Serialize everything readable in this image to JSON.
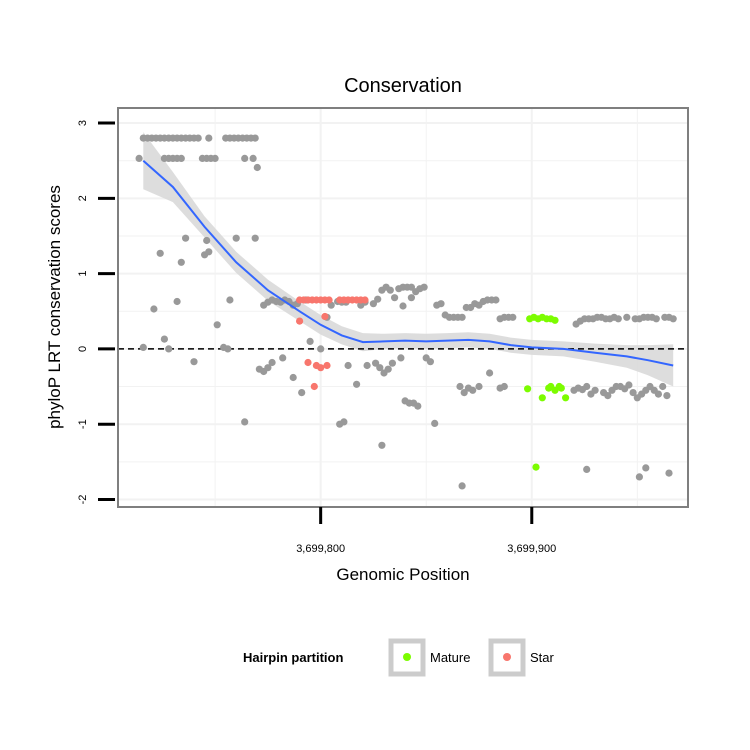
{
  "chart_data": {
    "type": "scatter",
    "title": "Conservation",
    "xlabel": "Genomic Position",
    "ylabel": "phyloP LRT conservation scores",
    "xlim": [
      3699704,
      3699974
    ],
    "ylim": [
      -2.1,
      3.2
    ],
    "x_ticks": [
      3699800,
      3699900
    ],
    "x_tick_labels": [
      "3,699,800",
      "3,699,900"
    ],
    "y_ticks": [
      -2,
      -1,
      0,
      1,
      2,
      3
    ],
    "y_tick_labels": [
      "-2",
      "-1",
      "0",
      "1",
      "2",
      "3"
    ],
    "reference_line_y": 0,
    "grid": true,
    "legend": {
      "title": "Hairpin partition",
      "position": "bottom",
      "entries": [
        {
          "label": "Mature",
          "color": "#7CFC00"
        },
        {
          "label": "Star",
          "color": "#F8766D"
        }
      ]
    },
    "colors": {
      "other": "#999999",
      "Mature": "#7CFC00",
      "Star": "#F8766D",
      "smooth": "#3366FF",
      "ribbon": "#D9D9D9"
    },
    "series": [
      {
        "name": "Other",
        "points": [
          [
            3699716,
            2.8
          ],
          [
            3699718,
            2.8
          ],
          [
            3699720,
            2.8
          ],
          [
            3699722,
            2.8
          ],
          [
            3699724,
            2.8
          ],
          [
            3699726,
            2.8
          ],
          [
            3699728,
            2.8
          ],
          [
            3699730,
            2.8
          ],
          [
            3699732,
            2.8
          ],
          [
            3699734,
            2.8
          ],
          [
            3699736,
            2.8
          ],
          [
            3699738,
            2.8
          ],
          [
            3699740,
            2.8
          ],
          [
            3699742,
            2.8
          ],
          [
            3699747,
            2.8
          ],
          [
            3699755,
            2.8
          ],
          [
            3699757,
            2.8
          ],
          [
            3699759,
            2.8
          ],
          [
            3699761,
            2.8
          ],
          [
            3699763,
            2.8
          ],
          [
            3699765,
            2.8
          ],
          [
            3699767,
            2.8
          ],
          [
            3699769,
            2.8
          ],
          [
            3699714,
            2.53
          ],
          [
            3699726,
            2.53
          ],
          [
            3699728,
            2.53
          ],
          [
            3699730,
            2.53
          ],
          [
            3699732,
            2.53
          ],
          [
            3699734,
            2.53
          ],
          [
            3699744,
            2.53
          ],
          [
            3699746,
            2.53
          ],
          [
            3699748,
            2.53
          ],
          [
            3699750,
            2.53
          ],
          [
            3699764,
            2.53
          ],
          [
            3699768,
            2.53
          ],
          [
            3699770,
            2.41
          ],
          [
            3699736,
            1.47
          ],
          [
            3699746,
            1.44
          ],
          [
            3699745,
            1.25
          ],
          [
            3699747,
            1.29
          ],
          [
            3699724,
            1.27
          ],
          [
            3699734,
            1.15
          ],
          [
            3699760,
            1.47
          ],
          [
            3699769,
            1.47
          ],
          [
            3699732,
            0.63
          ],
          [
            3699757,
            0.65
          ],
          [
            3699721,
            0.53
          ],
          [
            3699751,
            0.32
          ],
          [
            3699726,
            0.13
          ],
          [
            3699716,
            0.02
          ],
          [
            3699728,
            0.0
          ],
          [
            3699754,
            0.02
          ],
          [
            3699756,
            0.0
          ],
          [
            3699740,
            -0.17
          ],
          [
            3699764,
            -0.97
          ],
          [
            3699771,
            -0.27
          ],
          [
            3699773,
            -0.3
          ],
          [
            3699775,
            -0.25
          ],
          [
            3699777,
            -0.18
          ],
          [
            3699782,
            -0.12
          ],
          [
            3699787,
            -0.38
          ],
          [
            3699791,
            -0.58
          ],
          [
            3699773,
            0.58
          ],
          [
            3699775,
            0.62
          ],
          [
            3699777,
            0.65
          ],
          [
            3699779,
            0.63
          ],
          [
            3699781,
            0.62
          ],
          [
            3699783,
            0.65
          ],
          [
            3699785,
            0.63
          ],
          [
            3699787,
            0.58
          ],
          [
            3699789,
            0.6
          ],
          [
            3699793,
            0.65
          ],
          [
            3699805,
            0.58
          ],
          [
            3699808,
            0.63
          ],
          [
            3699810,
            0.62
          ],
          [
            3699812,
            0.62
          ],
          [
            3699795,
            0.1
          ],
          [
            3699800,
            0.0
          ],
          [
            3699803,
            0.42
          ],
          [
            3699809,
            -1.0
          ],
          [
            3699811,
            -0.97
          ],
          [
            3699813,
            -0.22
          ],
          [
            3699817,
            -0.47
          ],
          [
            3699819,
            0.58
          ],
          [
            3699821,
            0.62
          ],
          [
            3699825,
            0.6
          ],
          [
            3699827,
            0.66
          ],
          [
            3699829,
            0.78
          ],
          [
            3699831,
            0.82
          ],
          [
            3699833,
            0.78
          ],
          [
            3699835,
            0.68
          ],
          [
            3699837,
            0.8
          ],
          [
            3699839,
            0.82
          ],
          [
            3699841,
            0.82
          ],
          [
            3699843,
            0.82
          ],
          [
            3699845,
            0.76
          ],
          [
            3699847,
            0.8
          ],
          [
            3699849,
            0.82
          ],
          [
            3699843,
            0.68
          ],
          [
            3699839,
            0.57
          ],
          [
            3699822,
            -0.22
          ],
          [
            3699826,
            -0.19
          ],
          [
            3699828,
            -0.25
          ],
          [
            3699830,
            -0.32
          ],
          [
            3699832,
            -0.27
          ],
          [
            3699834,
            -0.19
          ],
          [
            3699838,
            -0.12
          ],
          [
            3699840,
            -0.69
          ],
          [
            3699842,
            -0.72
          ],
          [
            3699844,
            -0.72
          ],
          [
            3699846,
            -0.76
          ],
          [
            3699850,
            -0.12
          ],
          [
            3699852,
            -0.17
          ],
          [
            3699854,
            -0.99
          ],
          [
            3699855,
            0.58
          ],
          [
            3699857,
            0.6
          ],
          [
            3699859,
            0.45
          ],
          [
            3699861,
            0.42
          ],
          [
            3699863,
            0.42
          ],
          [
            3699865,
            0.42
          ],
          [
            3699867,
            0.42
          ],
          [
            3699869,
            0.55
          ],
          [
            3699871,
            0.55
          ],
          [
            3699873,
            0.6
          ],
          [
            3699875,
            0.58
          ],
          [
            3699877,
            0.63
          ],
          [
            3699879,
            0.65
          ],
          [
            3699881,
            0.65
          ],
          [
            3699883,
            0.65
          ],
          [
            3699885,
            0.4
          ],
          [
            3699887,
            0.42
          ],
          [
            3699889,
            0.42
          ],
          [
            3699891,
            0.42
          ],
          [
            3699866,
            -0.5
          ],
          [
            3699868,
            -0.58
          ],
          [
            3699870,
            -0.52
          ],
          [
            3699872,
            -0.55
          ],
          [
            3699880,
            -0.32
          ],
          [
            3699885,
            -0.52
          ],
          [
            3699887,
            -0.5
          ],
          [
            3699875,
            -0.5
          ],
          [
            3699829,
            -1.28
          ],
          [
            3699867,
            -1.82
          ],
          [
            3699921,
            0.33
          ],
          [
            3699923,
            0.37
          ],
          [
            3699925,
            0.4
          ],
          [
            3699927,
            0.4
          ],
          [
            3699929,
            0.4
          ],
          [
            3699931,
            0.42
          ],
          [
            3699933,
            0.42
          ],
          [
            3699935,
            0.4
          ],
          [
            3699937,
            0.4
          ],
          [
            3699939,
            0.42
          ],
          [
            3699941,
            0.4
          ],
          [
            3699945,
            0.42
          ],
          [
            3699949,
            0.4
          ],
          [
            3699951,
            0.4
          ],
          [
            3699953,
            0.42
          ],
          [
            3699955,
            0.42
          ],
          [
            3699957,
            0.42
          ],
          [
            3699959,
            0.4
          ],
          [
            3699963,
            0.42
          ],
          [
            3699965,
            0.42
          ],
          [
            3699967,
            0.4
          ],
          [
            3699920,
            -0.55
          ],
          [
            3699922,
            -0.52
          ],
          [
            3699924,
            -0.54
          ],
          [
            3699926,
            -0.5
          ],
          [
            3699928,
            -0.6
          ],
          [
            3699930,
            -0.55
          ],
          [
            3699934,
            -0.58
          ],
          [
            3699936,
            -0.62
          ],
          [
            3699938,
            -0.55
          ],
          [
            3699940,
            -0.5
          ],
          [
            3699942,
            -0.5
          ],
          [
            3699944,
            -0.53
          ],
          [
            3699946,
            -0.48
          ],
          [
            3699948,
            -0.58
          ],
          [
            3699950,
            -0.65
          ],
          [
            3699952,
            -0.6
          ],
          [
            3699954,
            -0.55
          ],
          [
            3699956,
            -0.5
          ],
          [
            3699958,
            -0.55
          ],
          [
            3699960,
            -0.6
          ],
          [
            3699962,
            -0.5
          ],
          [
            3699964,
            -0.62
          ],
          [
            3699926,
            -1.6
          ],
          [
            3699951,
            -1.7
          ],
          [
            3699954,
            -1.58
          ],
          [
            3699965,
            -1.65
          ]
        ]
      },
      {
        "name": "Mature",
        "points": [
          [
            3699899,
            0.4
          ],
          [
            3699901,
            0.42
          ],
          [
            3699903,
            0.4
          ],
          [
            3699905,
            0.42
          ],
          [
            3699907,
            0.4
          ],
          [
            3699909,
            0.4
          ],
          [
            3699911,
            0.38
          ],
          [
            3699898,
            -0.53
          ],
          [
            3699905,
            -0.65
          ],
          [
            3699909,
            -0.5
          ],
          [
            3699911,
            -0.55
          ],
          [
            3699913,
            -0.5
          ],
          [
            3699914,
            -0.52
          ],
          [
            3699916,
            -0.65
          ],
          [
            3699902,
            -1.57
          ],
          [
            3699908,
            -0.52
          ]
        ]
      },
      {
        "name": "Star",
        "points": [
          [
            3699790,
            0.65
          ],
          [
            3699792,
            0.65
          ],
          [
            3699794,
            0.65
          ],
          [
            3699796,
            0.65
          ],
          [
            3699798,
            0.65
          ],
          [
            3699800,
            0.65
          ],
          [
            3699802,
            0.65
          ],
          [
            3699804,
            0.65
          ],
          [
            3699809,
            0.65
          ],
          [
            3699811,
            0.65
          ],
          [
            3699813,
            0.65
          ],
          [
            3699815,
            0.65
          ],
          [
            3699817,
            0.65
          ],
          [
            3699819,
            0.65
          ],
          [
            3699821,
            0.65
          ],
          [
            3699790,
            0.37
          ],
          [
            3699802,
            0.43
          ],
          [
            3699794,
            -0.18
          ],
          [
            3699798,
            -0.22
          ],
          [
            3699800,
            -0.25
          ],
          [
            3699803,
            -0.22
          ],
          [
            3699797,
            -0.5
          ]
        ]
      }
    ],
    "smooth_line": [
      [
        3699716,
        2.5
      ],
      [
        3699730,
        2.15
      ],
      [
        3699745,
        1.62
      ],
      [
        3699760,
        1.15
      ],
      [
        3699775,
        0.78
      ],
      [
        3699790,
        0.5
      ],
      [
        3699800,
        0.32
      ],
      [
        3699810,
        0.18
      ],
      [
        3699820,
        0.09
      ],
      [
        3699830,
        0.1
      ],
      [
        3699840,
        0.11
      ],
      [
        3699850,
        0.1
      ],
      [
        3699860,
        0.11
      ],
      [
        3699870,
        0.12
      ],
      [
        3699880,
        0.1
      ],
      [
        3699890,
        0.05
      ],
      [
        3699900,
        0.02
      ],
      [
        3699915,
        0.0
      ],
      [
        3699930,
        -0.05
      ],
      [
        3699945,
        -0.1
      ],
      [
        3699955,
        -0.15
      ],
      [
        3699967,
        -0.22
      ]
    ],
    "smooth_ribbon_halfwidth": [
      [
        3699716,
        0.38
      ],
      [
        3699730,
        0.2
      ],
      [
        3699745,
        0.14
      ],
      [
        3699760,
        0.14
      ],
      [
        3699775,
        0.14
      ],
      [
        3699790,
        0.13
      ],
      [
        3699800,
        0.13
      ],
      [
        3699810,
        0.12
      ],
      [
        3699820,
        0.12
      ],
      [
        3699830,
        0.1
      ],
      [
        3699840,
        0.1
      ],
      [
        3699850,
        0.1
      ],
      [
        3699860,
        0.1
      ],
      [
        3699870,
        0.1
      ],
      [
        3699880,
        0.1
      ],
      [
        3699890,
        0.1
      ],
      [
        3699900,
        0.1
      ],
      [
        3699915,
        0.1
      ],
      [
        3699930,
        0.12
      ],
      [
        3699945,
        0.15
      ],
      [
        3699955,
        0.2
      ],
      [
        3699967,
        0.28
      ]
    ]
  }
}
